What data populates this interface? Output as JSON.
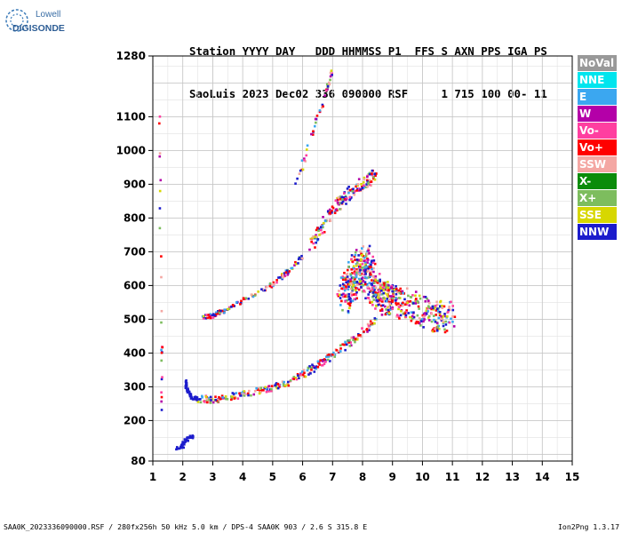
{
  "logo": {
    "line1": "Lowell",
    "line2": "DIGISONDE"
  },
  "header": {
    "line1": "Station YYYY DAY   DDD HHMMSS P1  FFS S AXN PPS IGA PS",
    "line2": "SaoLuis 2023 Dec02 336 090000 RSF     1 715 100 00- 11"
  },
  "legend": [
    {
      "label": "NoVal",
      "color": "#999999"
    },
    {
      "label": "NNE",
      "color": "#00e5ee"
    },
    {
      "label": "E",
      "color": "#3ba7f0"
    },
    {
      "label": "W",
      "color": "#b400a8"
    },
    {
      "label": "Vo-",
      "color": "#ff3fa0"
    },
    {
      "label": "Vo+",
      "color": "#ff0000"
    },
    {
      "label": "SSW",
      "color": "#f4a7a3"
    },
    {
      "label": "X-",
      "color": "#0a8c0a"
    },
    {
      "label": "X+",
      "color": "#7dbd5e"
    },
    {
      "label": "SSE",
      "color": "#d7d700"
    },
    {
      "label": "NNW",
      "color": "#1c1ccc"
    }
  ],
  "footer": {
    "left": "SAA0K_2023336090000.RSF / 280fx256h 50 kHz 5.0 km / DPS-4 SAA0K 903 / 2.6 S 315.8 E",
    "right": "Ion2Png 1.3.17"
  },
  "chart_data": {
    "type": "scatter",
    "title": "",
    "xlabel": "",
    "ylabel": "",
    "xlim": [
      1,
      15
    ],
    "ylim": [
      80,
      1280
    ],
    "x_ticks": [
      1,
      2,
      3,
      4,
      5,
      6,
      7,
      8,
      9,
      10,
      11,
      12,
      13,
      14,
      15
    ],
    "y_ticks": [
      80,
      200,
      300,
      400,
      500,
      600,
      700,
      800,
      900,
      1000,
      1100,
      1280
    ],
    "grid": true,
    "legend_position": "right",
    "traces": [
      {
        "name": "low-band",
        "points": [
          [
            1.8,
            120
          ],
          [
            1.9,
            122
          ],
          [
            2.0,
            125
          ],
          [
            2.1,
            140
          ],
          [
            2.2,
            150
          ],
          [
            2.4,
            152
          ]
        ],
        "color": "NNW"
      },
      {
        "name": "F-trace-main",
        "points": [
          [
            2.5,
            265
          ],
          [
            3.0,
            262
          ],
          [
            3.5,
            268
          ],
          [
            4.0,
            278
          ],
          [
            4.5,
            288
          ],
          [
            5.0,
            298
          ],
          [
            5.5,
            312
          ],
          [
            6.0,
            335
          ],
          [
            6.5,
            365
          ],
          [
            7.0,
            395
          ],
          [
            7.5,
            425
          ],
          [
            8.0,
            460
          ],
          [
            8.5,
            500
          ]
        ],
        "color": "mixed"
      },
      {
        "name": "F-trace-hook",
        "points": [
          [
            2.1,
            320
          ],
          [
            2.1,
            295
          ],
          [
            2.3,
            270
          ],
          [
            2.5,
            262
          ]
        ],
        "color": "NNW"
      },
      {
        "name": "F-second-hop-left",
        "points": [
          [
            2.6,
            505
          ],
          [
            3.0,
            510
          ],
          [
            3.5,
            530
          ],
          [
            4.0,
            555
          ],
          [
            4.5,
            580
          ],
          [
            5.0,
            605
          ],
          [
            5.5,
            640
          ],
          [
            6.0,
            690
          ]
        ],
        "color": "mixed"
      },
      {
        "name": "F-upper-spread",
        "points": [
          [
            6.3,
            720
          ],
          [
            6.6,
            770
          ],
          [
            7.0,
            820
          ],
          [
            7.4,
            860
          ],
          [
            7.8,
            890
          ],
          [
            8.2,
            910
          ],
          [
            8.4,
            930
          ]
        ],
        "color": "mixed"
      },
      {
        "name": "F-spread-cloud",
        "points": [
          [
            7.4,
            560
          ],
          [
            7.6,
            600
          ],
          [
            7.8,
            640
          ],
          [
            8.0,
            680
          ],
          [
            8.2,
            620
          ],
          [
            8.5,
            580
          ],
          [
            8.8,
            560
          ],
          [
            9.2,
            550
          ],
          [
            9.8,
            530
          ],
          [
            10.5,
            510
          ],
          [
            10.9,
            505
          ]
        ],
        "color": "mixed"
      },
      {
        "name": "faint-upper",
        "points": [
          [
            5.7,
            890
          ],
          [
            6.0,
            960
          ],
          [
            6.2,
            1020
          ],
          [
            6.5,
            1100
          ],
          [
            6.8,
            1180
          ],
          [
            7.0,
            1240
          ]
        ],
        "color": "mixed"
      },
      {
        "name": "left-column",
        "points": [
          [
            1.2,
            1240
          ],
          [
            1.25,
            960
          ],
          [
            1.25,
            880
          ],
          [
            1.25,
            790
          ],
          [
            1.25,
            720
          ],
          [
            1.3,
            430
          ],
          [
            1.3,
            380
          ],
          [
            1.3,
            300
          ],
          [
            1.3,
            200
          ]
        ],
        "color": "mixed"
      }
    ]
  }
}
